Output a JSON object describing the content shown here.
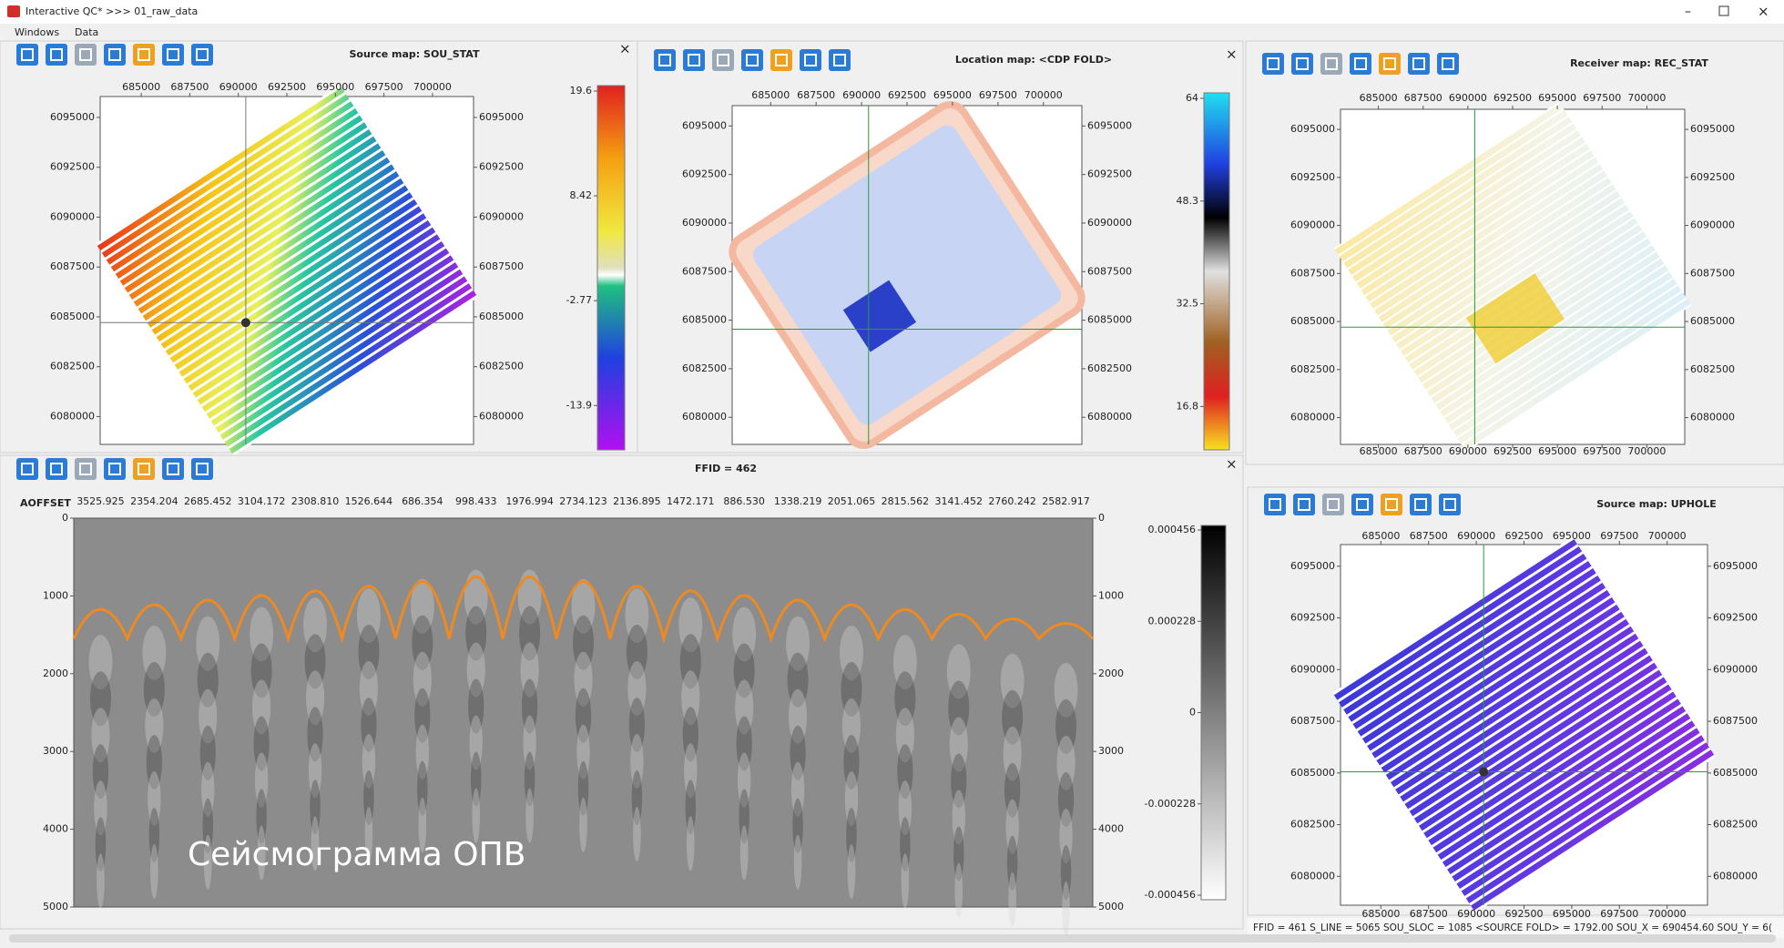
{
  "window": {
    "title": "Interactive QC* >>> 01_raw_data",
    "menu": [
      "Windows",
      "Data"
    ]
  },
  "maps": [
    {
      "title": "Source map:  SOU_STAT",
      "xticks": [
        685000,
        687500,
        690000,
        692500,
        695000,
        697500,
        700000
      ],
      "yticks": [
        6095000,
        6092500,
        6090000,
        6087500,
        6085000,
        6082500,
        6080000
      ],
      "colorbar_ticks": [
        19.6,
        8.42,
        -2.77,
        -13.9
      ]
    },
    {
      "title": "Location map:  <CDP FOLD>",
      "xticks": [
        685000,
        687500,
        690000,
        692500,
        695000,
        697500,
        700000
      ],
      "yticks": [
        6095000,
        6092500,
        6090000,
        6087500,
        6085000,
        6082500,
        6080000
      ],
      "colorbar_ticks": [
        64,
        48.3,
        32.5,
        16.8
      ]
    },
    {
      "title": "Receiver map:  REC_STAT",
      "xticks": [
        685000,
        687500,
        690000,
        692500,
        695000,
        697500,
        700000
      ],
      "yticks": [
        6095000,
        6092500,
        6090000,
        6087500,
        6085000,
        6082500,
        6080000
      ]
    },
    {
      "title": "Source map:  UPHOLE",
      "xticks": [
        685000,
        687500,
        690000,
        692500,
        695000,
        697500,
        700000
      ],
      "yticks": [
        6095000,
        6092500,
        6090000,
        6087500,
        6085000,
        6082500,
        6080000
      ]
    }
  ],
  "seismogram": {
    "title": "FFID = 462",
    "offset_label": "AOFFSET",
    "offsets": [
      3525.925,
      2354.204,
      2685.452,
      3104.172,
      {
        "value": 2308.81,
        "label": "2308.810"
      },
      1526.644,
      686.354,
      998.433,
      1976.994,
      2734.123,
      2136.895,
      1472.171,
      {
        "value": 886.53,
        "label": "886.530"
      },
      1338.219,
      2051.065,
      2815.562,
      3141.452,
      2760.242,
      2582.917
    ],
    "yticks": [
      0,
      1000,
      2000,
      3000,
      4000,
      5000
    ],
    "colorbar_ticks": [
      0.000456,
      0.000228,
      0,
      -0.000228,
      -0.000456
    ],
    "annotation": "Сейсмограмма ОПВ"
  },
  "status_bar": "FFID = 461  S_LINE = 5065  SOU_SLOC = 1085  <SOURCE FOLD> = 1792.00  SOU_X = 690454.60  SOU_Y = 6("
}
